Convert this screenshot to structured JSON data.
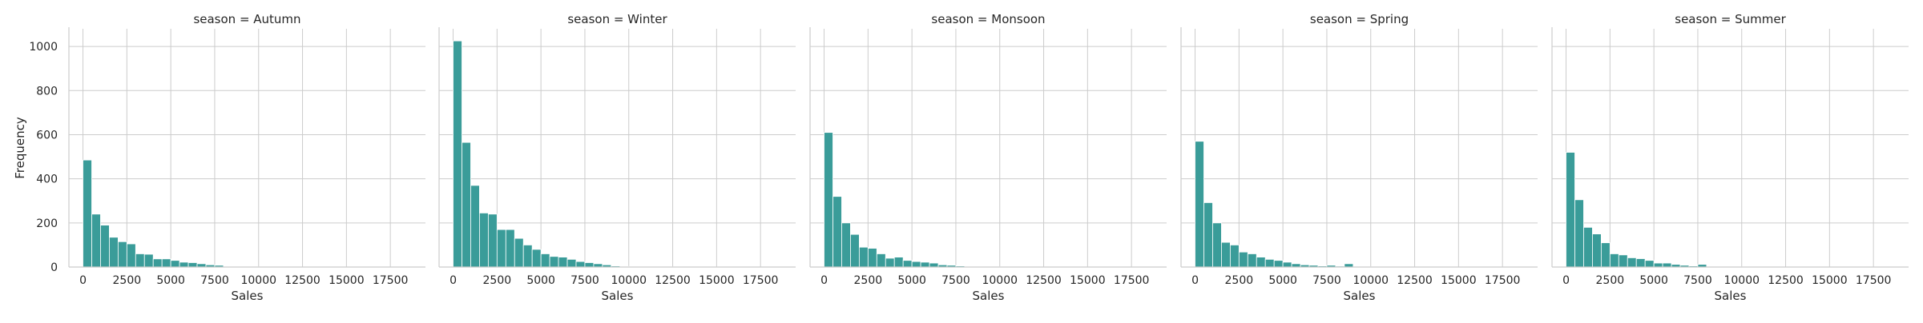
{
  "chart_data": {
    "type": "bar",
    "subtype": "faceted-histogram",
    "bar_color": "#3a9c99",
    "grid": true,
    "xlabel": "Sales",
    "ylabel": "Frequency",
    "xlim": [
      -800,
      19500
    ],
    "ylim": [
      0,
      1080
    ],
    "x_ticks": [
      "0",
      "2500",
      "5000",
      "7500",
      "10000",
      "12500",
      "15000",
      "17500"
    ],
    "x_tick_values": [
      0,
      2500,
      5000,
      7500,
      10000,
      12500,
      15000,
      17500
    ],
    "y_ticks": [
      "0",
      "200",
      "400",
      "600",
      "800",
      "1000"
    ],
    "y_tick_values": [
      0,
      200,
      400,
      600,
      800,
      1000
    ],
    "bin_width": 500,
    "bin_start": 0,
    "facets": [
      {
        "title": "season = Autumn",
        "values": [
          485,
          240,
          190,
          135,
          115,
          105,
          60,
          58,
          37,
          37,
          30,
          22,
          20,
          15,
          10,
          8,
          2,
          1,
          1,
          1,
          0,
          1,
          0,
          0,
          0,
          0,
          0,
          0,
          0,
          0,
          0,
          0,
          0,
          0,
          0,
          0,
          0,
          0
        ]
      },
      {
        "title": "season = Winter",
        "values": [
          1025,
          565,
          370,
          245,
          240,
          170,
          170,
          130,
          100,
          80,
          60,
          48,
          45,
          35,
          25,
          20,
          15,
          10,
          5,
          3,
          2,
          2,
          1,
          1,
          1,
          0,
          0,
          0,
          0,
          0,
          0,
          0,
          0,
          0,
          0,
          0,
          0,
          0
        ]
      },
      {
        "title": "season = Monsoon",
        "values": [
          610,
          320,
          200,
          148,
          90,
          85,
          60,
          40,
          45,
          30,
          25,
          22,
          18,
          10,
          8,
          5,
          2,
          2,
          1,
          1,
          1,
          0,
          0,
          0,
          0,
          0,
          0,
          0,
          0,
          0,
          0,
          0,
          0,
          0,
          0,
          0,
          0,
          0
        ]
      },
      {
        "title": "season = Spring",
        "values": [
          570,
          292,
          200,
          112,
          100,
          68,
          60,
          45,
          35,
          30,
          22,
          15,
          10,
          8,
          5,
          8,
          4,
          15,
          2,
          1,
          1,
          0,
          0,
          0,
          0,
          0,
          0,
          0,
          0,
          0,
          0,
          0,
          0,
          0,
          0,
          0,
          0,
          0
        ]
      },
      {
        "title": "season = Summer",
        "values": [
          520,
          305,
          180,
          150,
          110,
          60,
          55,
          42,
          38,
          30,
          18,
          18,
          12,
          8,
          5,
          12,
          3,
          2,
          1,
          1,
          0,
          0,
          0,
          0,
          0,
          0,
          0,
          0,
          0,
          0,
          0,
          0,
          0,
          0,
          0,
          0,
          0,
          0
        ]
      }
    ]
  }
}
